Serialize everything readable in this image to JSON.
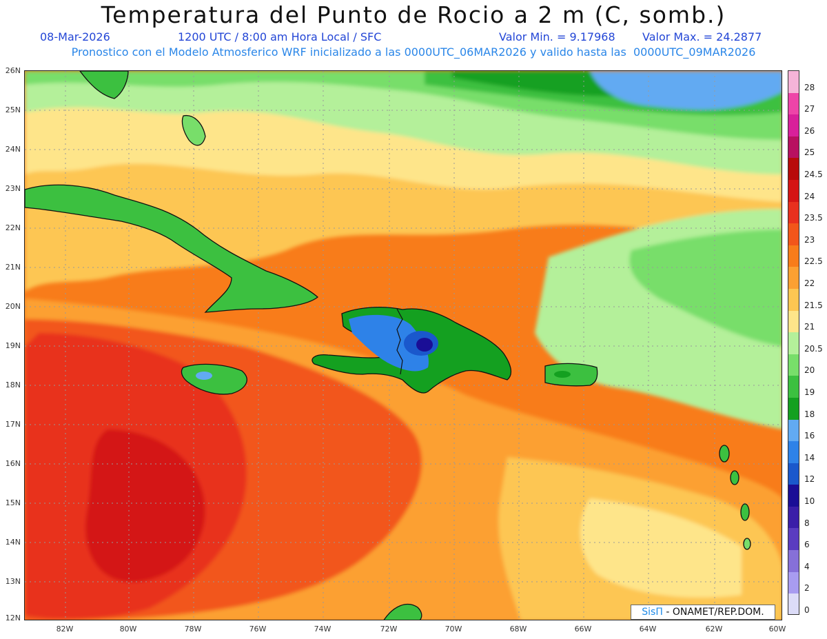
{
  "header": {
    "title": "Temperatura del Punto de Rocio a 2 m (C, somb.)",
    "date": "08-Mar-2026",
    "time_info": "1200 UTC / 8:00 am Hora Local / SFC",
    "min_label": "Valor Min. = 9.17968",
    "max_label": "Valor Max. = 24.2877",
    "model_info": "Pronostico con el Modelo Atmosferico WRF inicializado a las 0000UTC_06MAR2026 y valido hasta las  0000UTC_09MAR2026"
  },
  "axes": {
    "lat_labels": [
      "26N",
      "25N",
      "24N",
      "23N",
      "22N",
      "21N",
      "20N",
      "19N",
      "18N",
      "17N",
      "16N",
      "15N",
      "14N",
      "13N",
      "12N"
    ],
    "lon_labels": [
      "82W",
      "80W",
      "78W",
      "76W",
      "74W",
      "72W",
      "70W",
      "68W",
      "66W",
      "64W",
      "62W",
      "60W"
    ]
  },
  "colorbar": {
    "labels": [
      "28",
      "27",
      "26",
      "25",
      "24.5",
      "24",
      "23.5",
      "23",
      "22.5",
      "22",
      "21.5",
      "21",
      "20.5",
      "20",
      "19",
      "18",
      "16",
      "14",
      "12",
      "10",
      "8",
      "6",
      "4",
      "2",
      "0"
    ],
    "colors": [
      "#f5b4d8",
      "#ee44a8",
      "#d8209a",
      "#b81060",
      "#b80a0a",
      "#d41414",
      "#e8301e",
      "#f2561a",
      "#f87c1a",
      "#fca032",
      "#fdc652",
      "#fee58a",
      "#b4f09a",
      "#78de6a",
      "#3cc040",
      "#14a020",
      "#62aaf2",
      "#2e82e8",
      "#1a58cc",
      "#1a0e96",
      "#3a1ea8",
      "#5a3cc0",
      "#8670d8",
      "#a89cf0",
      "#dcdcf8"
    ]
  },
  "credit": {
    "brand": "SisΠ",
    "text": "- ONAMET/REP.DOM."
  }
}
